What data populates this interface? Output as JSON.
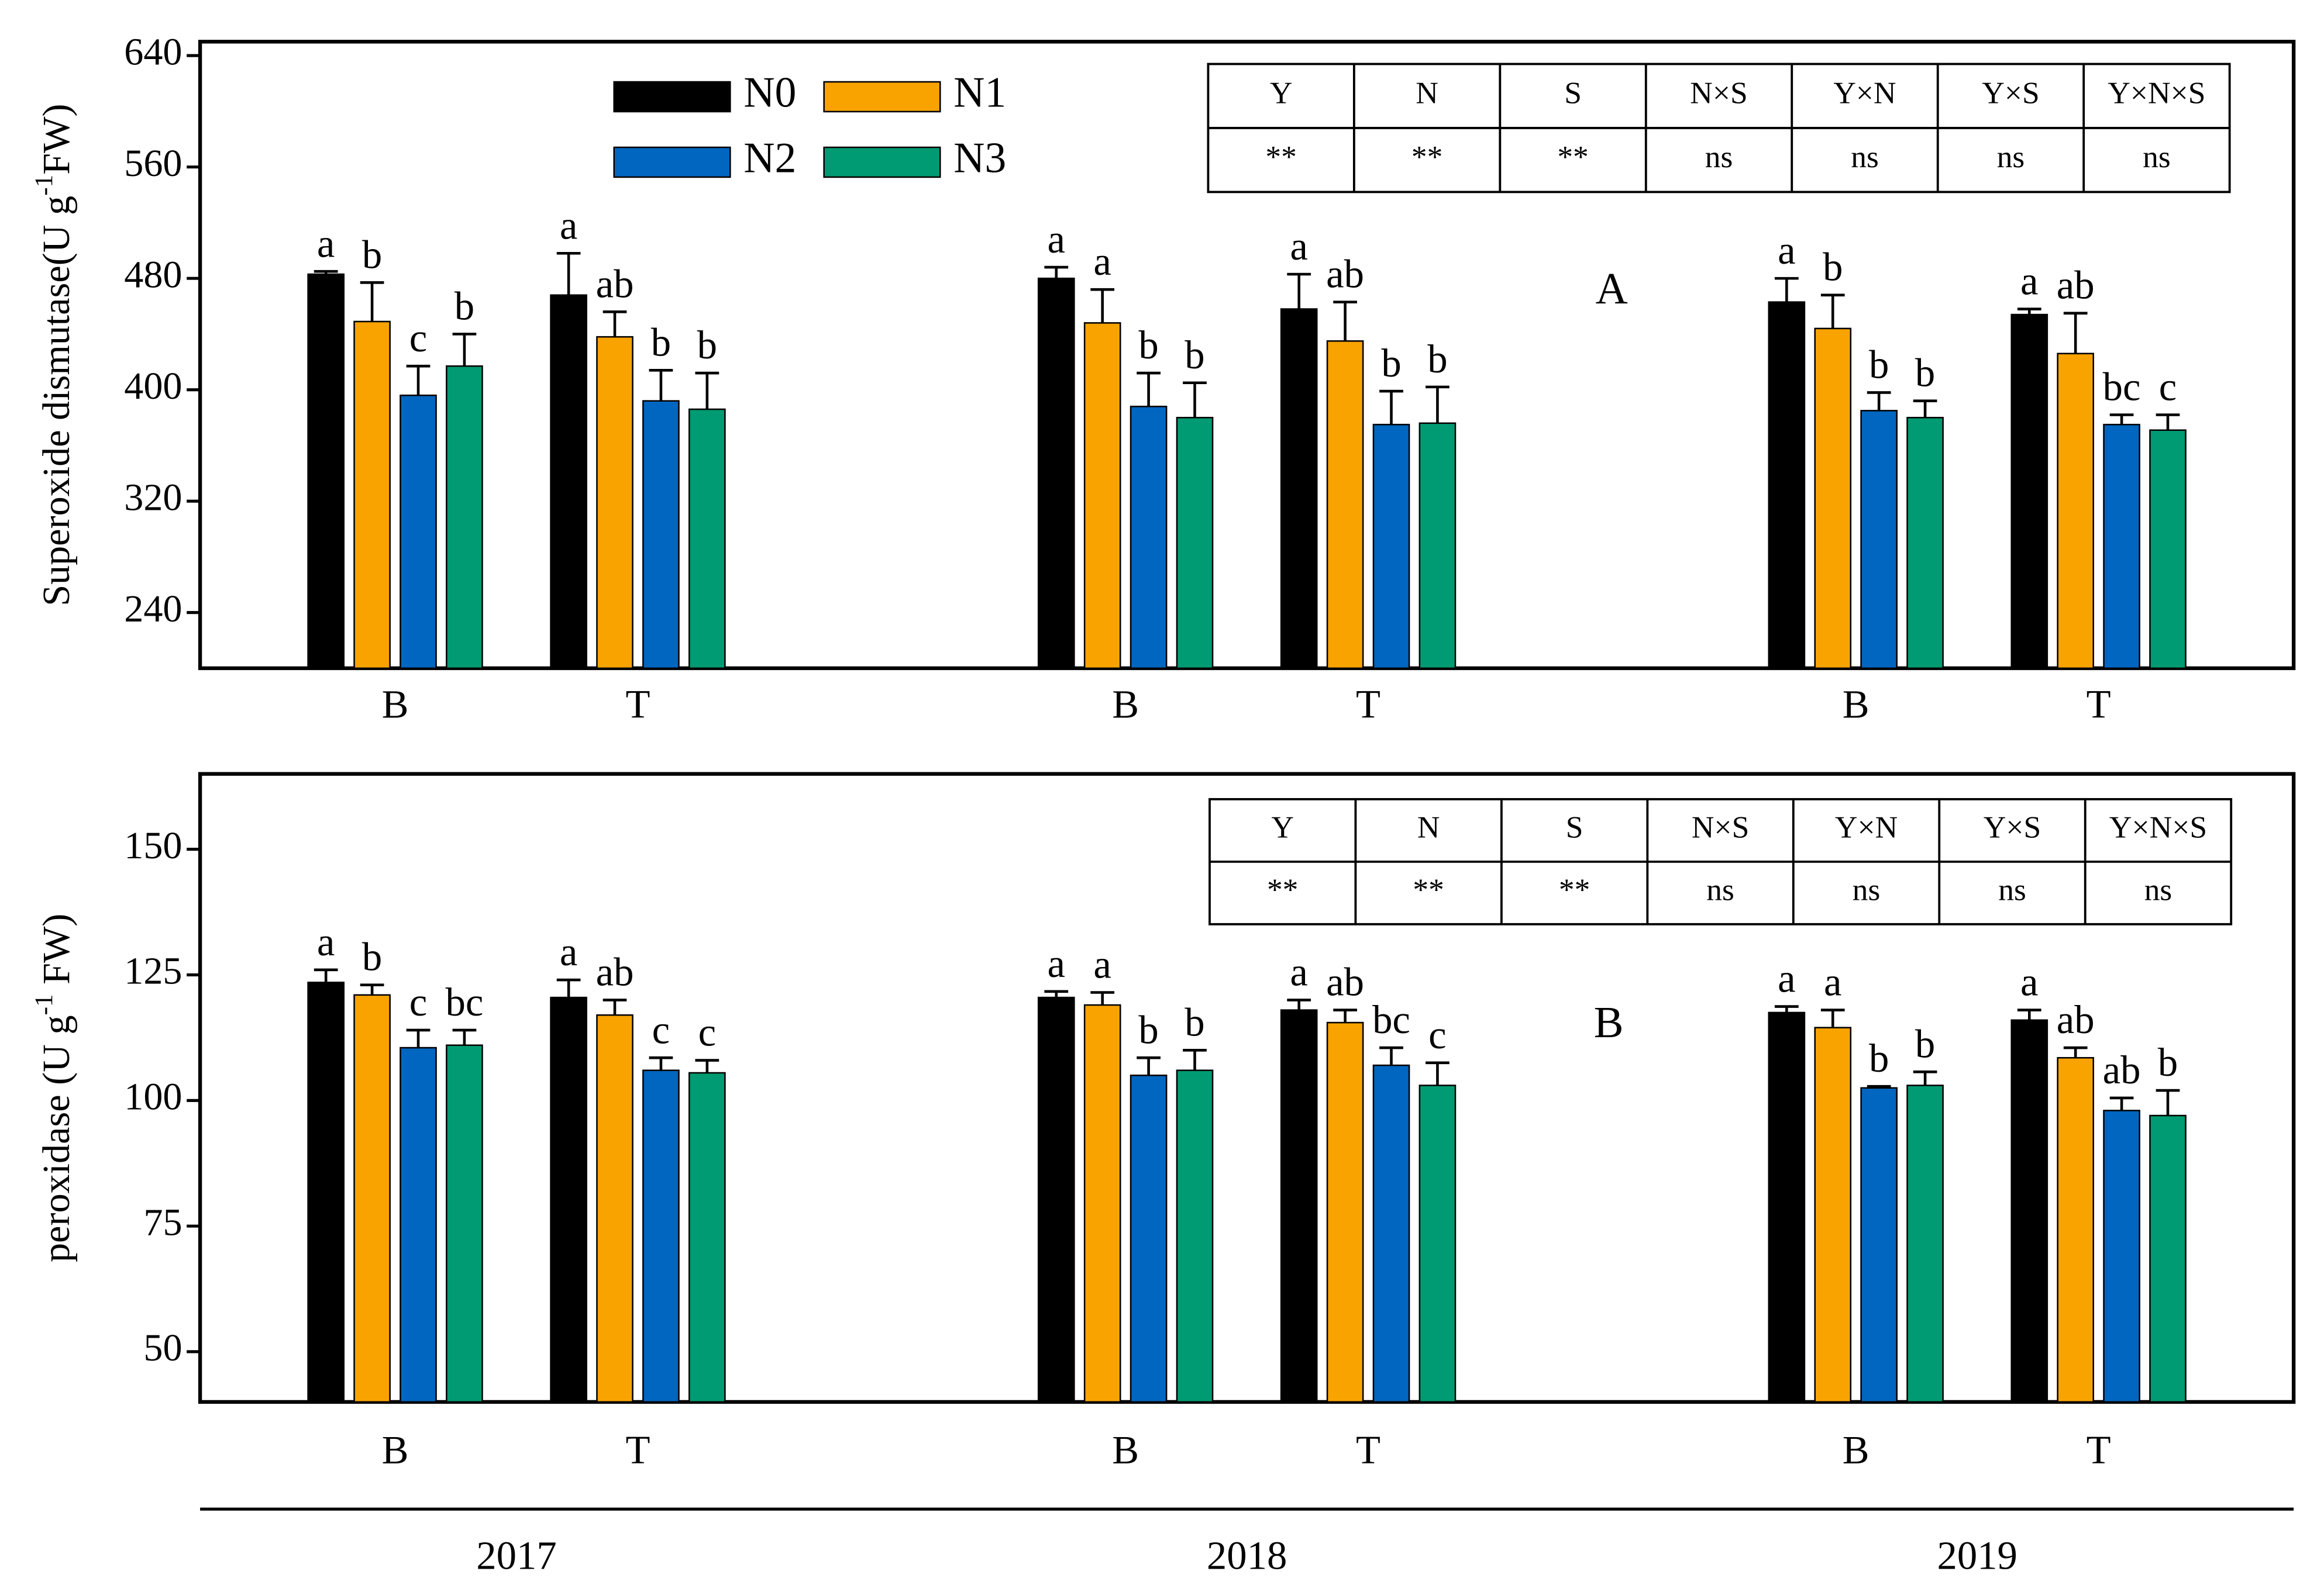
{
  "chart_data": [
    {
      "type": "bar",
      "panel_label": "A",
      "ylabel": [
        "Superoxide dismutase(U g",
        "-1",
        "FW)"
      ],
      "categories": [
        "B",
        "T",
        "B",
        "T",
        "B",
        "T"
      ],
      "ylim": [
        200,
        650
      ],
      "yticks": [
        240,
        320,
        400,
        480,
        560,
        640
      ],
      "series": [
        {
          "name": "N0",
          "color": "#000000",
          "values": [
            483,
            468,
            480,
            458,
            463,
            454
          ],
          "errors": [
            2,
            30,
            8,
            25,
            17,
            4
          ],
          "letters": [
            "a",
            "a",
            "a",
            "a",
            "a",
            "a"
          ]
        },
        {
          "name": "N1",
          "color": "#f8a300",
          "values": [
            449,
            438,
            448,
            435,
            444,
            426
          ],
          "errors": [
            28,
            18,
            24,
            28,
            24,
            29
          ],
          "letters": [
            "b",
            "ab",
            "a",
            "ab",
            "b",
            "ab"
          ]
        },
        {
          "name": "N2",
          "color": "#0066c0",
          "values": [
            396,
            392,
            388,
            375,
            385,
            375
          ],
          "errors": [
            21,
            22,
            24,
            24,
            13,
            7
          ],
          "letters": [
            "c",
            "b",
            "b",
            "b",
            "b",
            "bc"
          ]
        },
        {
          "name": "N3",
          "color": "#009b72",
          "values": [
            417,
            386,
            380,
            376,
            380,
            371
          ],
          "errors": [
            23,
            26,
            25,
            26,
            12,
            11
          ],
          "letters": [
            "b",
            "b",
            "b",
            "b",
            "b",
            "c"
          ]
        }
      ],
      "table": {
        "header": [
          "Y",
          "N",
          "S",
          "N×S",
          "Y×N",
          "Y×S",
          "Y×N×S"
        ],
        "rows": [
          [
            "**",
            "**",
            "**",
            "ns",
            "ns",
            "ns",
            "ns"
          ]
        ]
      }
    },
    {
      "type": "bar",
      "panel_label": "B",
      "ylabel": [
        "peroxidase (U g",
        "-1",
        " FW)"
      ],
      "categories": [
        "B",
        "T",
        "B",
        "T",
        "B",
        "T"
      ],
      "group_labels": [
        "2017",
        "2018",
        "2019"
      ],
      "ylim": [
        40,
        165
      ],
      "yticks": [
        50,
        75,
        100,
        125,
        150
      ],
      "series": [
        {
          "color": "#000000",
          "values": [
            123.5,
            120.5,
            120.5,
            118,
            117.5,
            116
          ],
          "errors": [
            2.5,
            3.5,
            1.2,
            2,
            1.2,
            2
          ],
          "letters": [
            "a",
            "a",
            "a",
            "a",
            "a",
            "a"
          ]
        },
        {
          "color": "#f8a300",
          "values": [
            121,
            117,
            119,
            115.5,
            114.5,
            108.5
          ],
          "errors": [
            2,
            3,
            2.5,
            2.5,
            3.5,
            2
          ],
          "letters": [
            "b",
            "ab",
            "a",
            "ab",
            "a",
            "ab"
          ]
        },
        {
          "color": "#0066c0",
          "values": [
            110.5,
            106,
            105,
            107,
            102.5,
            98
          ],
          "errors": [
            3.5,
            2.5,
            3.5,
            3.5,
            0.3,
            2.5
          ],
          "letters": [
            "c",
            "c",
            "b",
            "bc",
            "b",
            "ab"
          ]
        },
        {
          "color": "#009b72",
          "values": [
            111,
            105.5,
            106,
            103,
            103,
            97
          ],
          "errors": [
            3,
            2.5,
            4,
            4.5,
            2.7,
            5
          ],
          "letters": [
            "bc",
            "c",
            "b",
            "c",
            "b",
            "b"
          ]
        }
      ],
      "table": {
        "header": [
          "Y",
          "N",
          "S",
          "N×S",
          "Y×N",
          "Y×S",
          "Y×N×S"
        ],
        "rows": [
          [
            "**",
            "**",
            "**",
            "ns",
            "ns",
            "ns",
            "ns"
          ]
        ]
      }
    }
  ]
}
